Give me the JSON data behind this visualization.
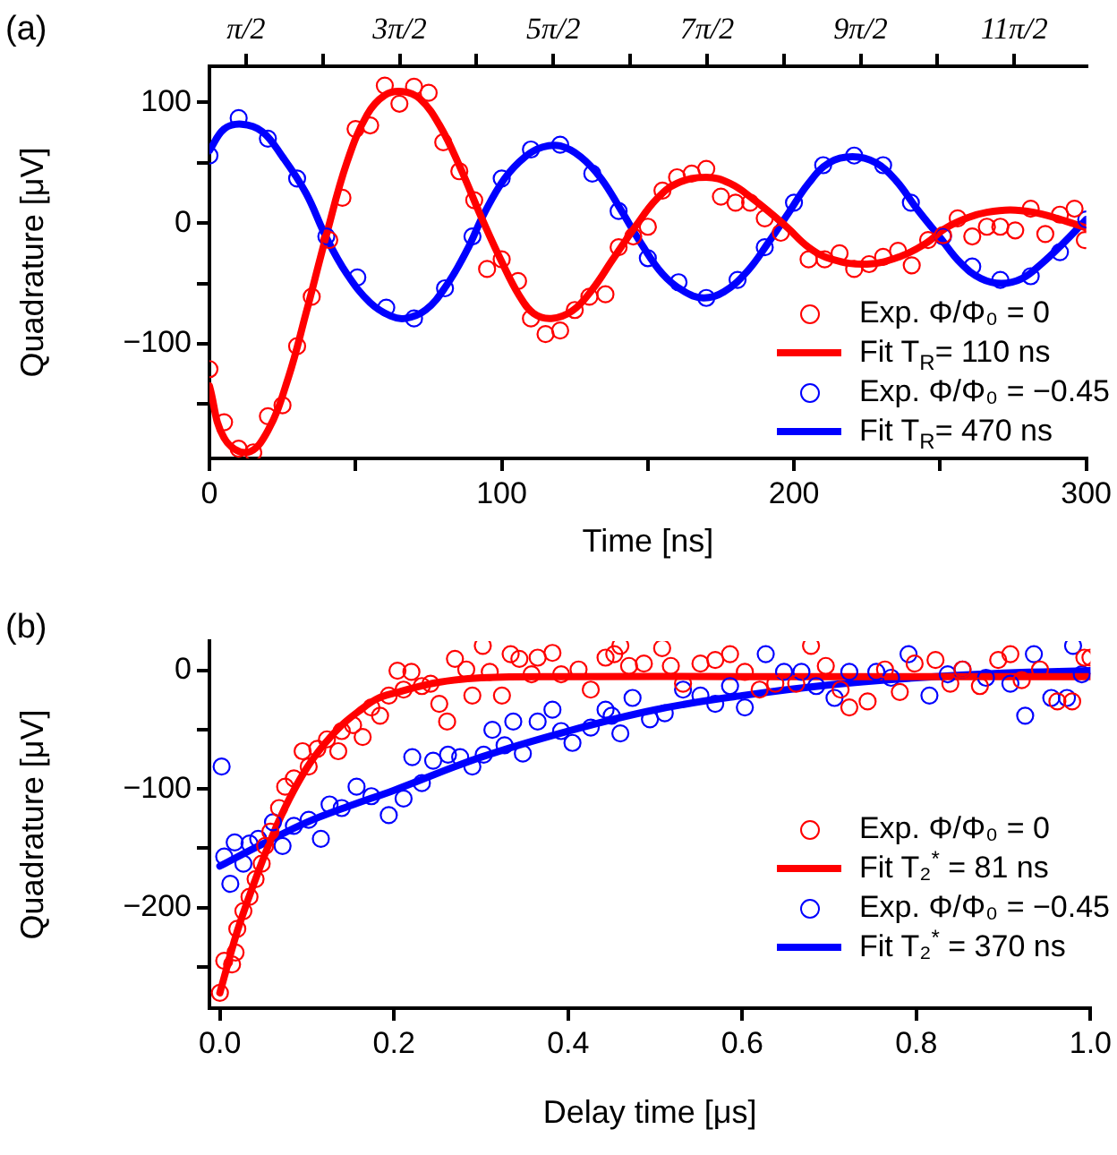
{
  "chart_data": [
    {
      "type": "scatter",
      "title": "(a)",
      "xlabel": "Time [ns]",
      "ylabel": "Quadrature [μV]",
      "xlim": [
        0,
        300
      ],
      "xticks": [
        0,
        {
          "value": 50,
          "label": null
        },
        100,
        {
          "value": 150,
          "label": null
        },
        200,
        {
          "value": 250,
          "label": null
        },
        300
      ],
      "ylim": [
        -195,
        130
      ],
      "yticks": [
        {
          "value": -150,
          "label": null
        },
        {
          "value": -100,
          "label": "−100"
        },
        {
          "value": -50,
          "label": null
        },
        {
          "value": 0,
          "label": "0"
        },
        {
          "value": 50,
          "label": null
        },
        {
          "value": 100,
          "label": "100"
        }
      ],
      "x2lim": [
        0.823,
        18.749
      ],
      "x2ticks": [
        {
          "value": 1.571,
          "label": "π/2"
        },
        {
          "value": 3.142,
          "label": null
        },
        {
          "value": 4.712,
          "label": "3π/2"
        },
        {
          "value": 6.283,
          "label": null
        },
        {
          "value": 7.854,
          "label": "5π/2"
        },
        {
          "value": 9.425,
          "label": null
        },
        {
          "value": 10.996,
          "label": "7π/2"
        },
        {
          "value": 12.566,
          "label": null
        },
        {
          "value": 14.137,
          "label": "9π/2"
        },
        {
          "value": 15.708,
          "label": null
        },
        {
          "value": 17.279,
          "label": "11π/2"
        }
      ],
      "grid": false,
      "legend": "bottom right",
      "line_style": "solid",
      "series": [
        {
          "name": "Exp. Φ/Φ₀ = 0",
          "type": "scatter",
          "marker": "circle",
          "color": "#ff0000",
          "x": [
            0,
            5,
            10,
            15,
            20,
            25,
            30,
            35,
            41,
            45.5,
            50,
            55,
            60,
            65,
            70,
            75,
            80,
            85.5,
            90.6,
            95,
            100,
            105.6,
            110,
            115,
            120,
            125,
            130,
            135.5,
            140,
            145,
            150,
            155,
            160,
            165,
            170,
            175,
            180,
            185,
            190,
            195.5,
            205,
            210.5,
            215.6,
            220.6,
            225.7,
            230.5,
            235.6,
            240.3,
            245.9,
            251,
            256,
            261,
            266,
            270.6,
            275.7,
            281,
            286,
            291,
            296,
            299.5
          ],
          "values": [
            -121,
            -165,
            -187,
            -190,
            -160,
            -151,
            -102,
            -61,
            -14,
            21,
            78,
            81,
            114,
            99,
            113,
            108,
            67,
            43,
            19,
            -38,
            -30,
            -48,
            -79,
            -92,
            -89,
            -72,
            -61,
            -59,
            -20,
            -11,
            -3,
            27,
            38,
            41,
            45,
            22,
            17,
            17,
            4,
            -8,
            -30,
            -30,
            -25,
            -38,
            -34,
            -28,
            -23,
            -35,
            -14,
            -10,
            4,
            -11,
            -3,
            -3,
            -6,
            12,
            -9,
            7,
            12,
            -14
          ]
        },
        {
          "name": "Fit T$_{R}$= 110 ns",
          "type": "line",
          "color": "#ff0000",
          "x": [
            0,
            5,
            13,
            20,
            27,
            33,
            40,
            47,
            54,
            60,
            66,
            72,
            79,
            86,
            93,
            100,
            106,
            111,
            117,
            124,
            131,
            138,
            146,
            153,
            160,
            170,
            178,
            186,
            197,
            205,
            213,
            225,
            236,
            245,
            252,
            260,
            266,
            274,
            282,
            290,
            300
          ],
          "values": [
            -135,
            -178,
            -190,
            -172,
            -128,
            -75,
            -10,
            50,
            90,
            106,
            109,
            103,
            80,
            45,
            5,
            -32,
            -60,
            -75,
            -79,
            -73,
            -55,
            -30,
            -2,
            20,
            33,
            38,
            33,
            20,
            -2,
            -20,
            -30,
            -34,
            -28,
            -17,
            -4,
            5,
            9,
            11,
            9,
            4,
            -4
          ]
        },
        {
          "name": "Exp. Φ/Φ₀ = −0.45",
          "type": "scatter",
          "marker": "circle",
          "color": "#0000ff",
          "x": [
            0,
            10,
            20,
            30,
            40,
            50.6,
            60.5,
            70,
            80.6,
            90,
            100,
            110,
            120,
            131,
            140,
            150,
            160.5,
            170,
            180.7,
            190,
            200,
            210,
            220.6,
            230.5,
            240,
            251,
            261,
            270.6,
            281,
            291,
            300
          ],
          "values": [
            56,
            87,
            70,
            37,
            -11,
            -45,
            -70,
            -79,
            -54,
            -11,
            37,
            61,
            65,
            41,
            10,
            -29,
            -49,
            -62,
            -47,
            -20,
            17,
            48,
            56,
            48,
            17,
            -11,
            -36,
            -47,
            -44,
            -24,
            3
          ]
        },
        {
          "name": "Fit T$_{R}$= 470 ns",
          "type": "line",
          "color": "#0000ff",
          "x": [
            0,
            5,
            11,
            18,
            25,
            33,
            40,
            47,
            55,
            62,
            67,
            74,
            81,
            88,
            94,
            101,
            108,
            114,
            120,
            127,
            134,
            141,
            148,
            155,
            162,
            169,
            176,
            184,
            191,
            198,
            205,
            212,
            220,
            228,
            235,
            242,
            250,
            257,
            264,
            271,
            278,
            285,
            292,
            300
          ],
          "values": [
            60,
            78,
            82,
            76,
            55,
            25,
            -12,
            -42,
            -66,
            -77,
            -79,
            -72,
            -52,
            -23,
            8,
            37,
            55,
            63,
            64,
            55,
            37,
            10,
            -18,
            -42,
            -56,
            -62,
            -57,
            -40,
            -17,
            8,
            33,
            50,
            55,
            50,
            35,
            12,
            -12,
            -33,
            -46,
            -50,
            -46,
            -33,
            -17,
            3
          ]
        }
      ]
    },
    {
      "type": "scatter",
      "title": "(b)",
      "xlabel": "Delay time [μs]",
      "ylabel": "Quadrature [μV]",
      "xlim": [
        -0.012,
        1.0
      ],
      "xticks": [
        {
          "value": 0,
          "label": "0.0"
        },
        {
          "value": 0.2,
          "label": "0.2"
        },
        {
          "value": 0.4,
          "label": "0.4"
        },
        {
          "value": 0.6,
          "label": "0.6"
        },
        {
          "value": 0.8,
          "label": "0.8"
        },
        {
          "value": 1,
          "label": "1.0"
        }
      ],
      "ylim": [
        -285,
        25
      ],
      "yticks": [
        {
          "value": -250,
          "label": null
        },
        {
          "value": -200,
          "label": "−200"
        },
        {
          "value": -150,
          "label": null
        },
        {
          "value": -100,
          "label": "−100"
        },
        {
          "value": -50,
          "label": null
        },
        {
          "value": 0,
          "label": "0"
        }
      ],
      "grid": false,
      "legend": "bottom right",
      "line_style": "solid",
      "series": [
        {
          "name": "Exp. Φ/Φ₀ = 0",
          "type": "scatter",
          "marker": "circle",
          "color": "#ff0000",
          "x": [
            0,
            0.005,
            0.014,
            0.018,
            0.02,
            0.027,
            0.034,
            0.041,
            0.048,
            0.052,
            0.058,
            0.068,
            0.075,
            0.085,
            0.095,
            0.102,
            0.112,
            0.123,
            0.136,
            0.14,
            0.153,
            0.164,
            0.174,
            0.184,
            0.194,
            0.204,
            0.211,
            0.22,
            0.232,
            0.242,
            0.252,
            0.261,
            0.27,
            0.283,
            0.29,
            0.302,
            0.31,
            0.324,
            0.334,
            0.344,
            0.358,
            0.365,
            0.382,
            0.392,
            0.412,
            0.426,
            0.443,
            0.453,
            0.46,
            0.47,
            0.487,
            0.508,
            0.518,
            0.532,
            0.552,
            0.569,
            0.586,
            0.603,
            0.62,
            0.638,
            0.662,
            0.679,
            0.696,
            0.713,
            0.723,
            0.744,
            0.764,
            0.781,
            0.798,
            0.822,
            0.839,
            0.853,
            0.873,
            0.894,
            0.908,
            0.921,
            0.942,
            0.962,
            0.979,
            0.993,
            1.0
          ],
          "values": [
            -272,
            -245,
            -248,
            -238,
            -218,
            -203,
            -191,
            -176,
            -163,
            -148,
            -136,
            -116,
            -98,
            -91,
            -68,
            -81,
            -66,
            -58,
            -68,
            -51,
            -46,
            -56,
            -31,
            -38,
            -21,
            0,
            -16,
            -1,
            -13,
            -11,
            -28,
            -43,
            10,
            1,
            -21,
            21,
            -1,
            -21,
            14,
            10,
            -3,
            11,
            15,
            -3,
            1,
            -16,
            11,
            14,
            21,
            4,
            6,
            19,
            4,
            -11,
            6,
            9,
            14,
            -1,
            -16,
            -11,
            -11,
            21,
            4,
            -16,
            -31,
            -26,
            1,
            -18,
            6,
            9,
            -11,
            1,
            -13,
            9,
            14,
            -8,
            1,
            -26,
            -26,
            11,
            11
          ]
        },
        {
          "name": "Fit T₂$^{*}$ = 81 ns",
          "type": "line",
          "color": "#ff0000",
          "x": [
            0,
            0.02,
            0.04,
            0.06,
            0.08,
            0.1,
            0.12,
            0.14,
            0.16,
            0.18,
            0.2,
            0.25,
            0.3,
            0.4,
            0.6,
            1.0
          ],
          "values": [
            -272,
            -220,
            -178,
            -140,
            -108,
            -82,
            -62,
            -46,
            -34,
            -24,
            -19,
            -10,
            -6,
            -5,
            -5,
            -5
          ]
        },
        {
          "name": "Exp. Φ/Φ₀ = −0.45",
          "type": "scatter",
          "marker": "circle",
          "color": "#0000ff",
          "x": [
            0.002,
            0.005,
            0.012,
            0.017,
            0.027,
            0.034,
            0.044,
            0.061,
            0.072,
            0.085,
            0.102,
            0.116,
            0.126,
            0.14,
            0.157,
            0.174,
            0.194,
            0.211,
            0.221,
            0.232,
            0.245,
            0.262,
            0.276,
            0.29,
            0.303,
            0.313,
            0.327,
            0.337,
            0.348,
            0.365,
            0.382,
            0.392,
            0.405,
            0.426,
            0.443,
            0.45,
            0.46,
            0.474,
            0.494,
            0.511,
            0.532,
            0.552,
            0.569,
            0.586,
            0.603,
            0.627,
            0.648,
            0.668,
            0.685,
            0.706,
            0.723,
            0.754,
            0.771,
            0.791,
            0.815,
            0.836,
            0.853,
            0.88,
            0.908,
            0.925,
            0.935,
            0.955,
            0.973,
            0.98,
            0.99
          ],
          "values": [
            -81,
            -157,
            -180,
            -145,
            -163,
            -146,
            -142,
            -128,
            -148,
            -131,
            -126,
            -142,
            -113,
            -116,
            -98,
            -106,
            -122,
            -108,
            -73,
            -95,
            -76,
            -71,
            -73,
            -81,
            -71,
            -50,
            -63,
            -43,
            -70,
            -43,
            -33,
            -51,
            -61,
            -48,
            -33,
            -38,
            -53,
            -23,
            -41,
            -36,
            -16,
            -21,
            -28,
            -13,
            -31,
            14,
            -1,
            -1,
            -13,
            -23,
            -1,
            -1,
            -6,
            14,
            -21,
            -3,
            1,
            -6,
            -11,
            -38,
            14,
            -23,
            -23,
            21,
            -3
          ]
        },
        {
          "name": "Fit T₂$^{*}$ = 370 ns",
          "type": "line",
          "color": "#0000ff",
          "x": [
            0,
            0.05,
            0.1,
            0.15,
            0.2,
            0.3,
            0.4,
            0.5,
            0.6,
            0.7,
            0.8,
            0.9,
            1.0
          ],
          "values": [
            -165,
            -146,
            -128,
            -114,
            -101,
            -73,
            -51,
            -33,
            -21,
            -12,
            -6,
            -2,
            0
          ]
        }
      ]
    }
  ]
}
